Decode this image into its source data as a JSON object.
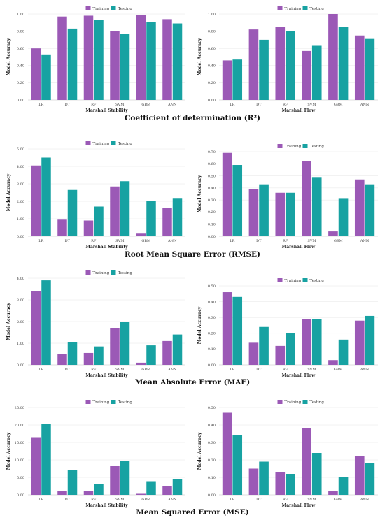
{
  "colors": {
    "training": "#9b59b6",
    "testing": "#17a2a2"
  },
  "legend": {
    "training": "Training",
    "testing": "Testing"
  },
  "captions": [
    "Coefficient of determination (R²)",
    "Root Mean Square Error (RMSE)",
    "Mean Absolute Error (MAE)",
    "Mean Squared Error (MSE)"
  ],
  "chart_data": [
    {
      "type": "bar",
      "categories": [
        "LR",
        "DT",
        "RF",
        "SVM",
        "GBM",
        "ANN"
      ],
      "series": [
        {
          "name": "Training",
          "values": [
            0.6,
            0.97,
            0.98,
            0.8,
            0.99,
            0.94
          ]
        },
        {
          "name": "Testing",
          "values": [
            0.53,
            0.83,
            0.93,
            0.77,
            0.91,
            0.89
          ]
        }
      ],
      "xlabel": "Marshall Stability",
      "ylabel": "Model Accuracy",
      "ylim": [
        0,
        1.0
      ],
      "ticks": [
        "0.00",
        "0.20",
        "0.40",
        "0.60",
        "0.80",
        "1.00"
      ],
      "grid": true,
      "legend_position": "top-center"
    },
    {
      "type": "bar",
      "categories": [
        "LR",
        "DT",
        "RF",
        "SVM",
        "GBM",
        "ANN"
      ],
      "series": [
        {
          "name": "Training",
          "values": [
            0.46,
            0.82,
            0.85,
            0.57,
            1.0,
            0.75
          ]
        },
        {
          "name": "Testing",
          "values": [
            0.47,
            0.7,
            0.8,
            0.63,
            0.85,
            0.71
          ]
        }
      ],
      "xlabel": "Marshall Flow",
      "ylabel": "Model Accuracy",
      "ylim": [
        0,
        1.0
      ],
      "ticks": [
        "0.00",
        "0.20",
        "0.40",
        "0.60",
        "0.80",
        "1.00"
      ],
      "grid": true,
      "legend_position": "top-center"
    },
    {
      "type": "bar",
      "categories": [
        "LR",
        "DT",
        "RF",
        "SVM",
        "GBM",
        "ANN"
      ],
      "series": [
        {
          "name": "Training",
          "values": [
            4.05,
            0.95,
            0.9,
            2.85,
            0.15,
            1.6
          ]
        },
        {
          "name": "Testing",
          "values": [
            4.5,
            2.65,
            1.7,
            3.15,
            2.0,
            2.15
          ]
        }
      ],
      "xlabel": "Marshall Stability",
      "ylabel": "Model Accuracy",
      "ylim": [
        0,
        5.0
      ],
      "ticks": [
        "0.00",
        "1.00",
        "2.00",
        "3.00",
        "4.00",
        "5.00"
      ],
      "grid": true,
      "legend_position": "top-center"
    },
    {
      "type": "bar",
      "categories": [
        "LR",
        "DT",
        "RF",
        "SVM",
        "GBM",
        "ANN"
      ],
      "series": [
        {
          "name": "Training",
          "values": [
            0.69,
            0.39,
            0.36,
            0.62,
            0.04,
            0.47
          ]
        },
        {
          "name": "Testing",
          "values": [
            0.59,
            0.43,
            0.36,
            0.49,
            0.31,
            0.43
          ]
        }
      ],
      "xlabel": "Marshall Flow",
      "ylabel": "Model Accuracy",
      "ylim": [
        0,
        0.7
      ],
      "ticks": [
        "0.00",
        "0.10",
        "0.20",
        "0.30",
        "0.40",
        "0.50",
        "0.60",
        "0.70"
      ],
      "grid": true,
      "legend_position": "top-center"
    },
    {
      "type": "bar",
      "categories": [
        "LR",
        "DT",
        "RF",
        "SVM",
        "GBM",
        "ANN"
      ],
      "series": [
        {
          "name": "Training",
          "values": [
            3.4,
            0.5,
            0.55,
            1.7,
            0.1,
            1.1
          ]
        },
        {
          "name": "Testing",
          "values": [
            3.9,
            1.05,
            0.85,
            2.0,
            0.9,
            1.4
          ]
        }
      ],
      "xlabel": "Marshall Stability",
      "ylabel": "Model Accuracy",
      "ylim": [
        0,
        4.0
      ],
      "ticks": [
        "0.00",
        "1.00",
        "2.00",
        "3.00",
        "4.00"
      ],
      "grid": true,
      "legend_position": "top-center"
    },
    {
      "type": "bar",
      "categories": [
        "LR",
        "DT",
        "RF",
        "SVM",
        "GBM",
        "ANN"
      ],
      "series": [
        {
          "name": "Training",
          "values": [
            0.46,
            0.14,
            0.12,
            0.29,
            0.03,
            0.28
          ]
        },
        {
          "name": "Testing",
          "values": [
            0.43,
            0.24,
            0.2,
            0.29,
            0.16,
            0.31
          ]
        }
      ],
      "xlabel": "Marshall Flow",
      "ylabel": "Model Accuracy",
      "ylim": [
        0,
        0.5
      ],
      "ticks": [
        "0.00",
        "0.10",
        "0.20",
        "0.30",
        "0.40",
        "0.50"
      ],
      "grid": true,
      "legend_position": "top-center"
    },
    {
      "type": "bar",
      "categories": [
        "LR",
        "DT",
        "RF",
        "SVM",
        "GBM",
        "ANN"
      ],
      "series": [
        {
          "name": "Training",
          "values": [
            16.5,
            1.0,
            1.0,
            8.2,
            0.3,
            2.5
          ]
        },
        {
          "name": "Testing",
          "values": [
            20.2,
            7.0,
            3.0,
            9.8,
            3.9,
            4.5
          ]
        }
      ],
      "xlabel": "Marshall Stability",
      "ylabel": "Model Accuracy",
      "ylim": [
        0,
        25.0
      ],
      "ticks": [
        "0.00",
        "5.00",
        "10.00",
        "15.00",
        "20.00",
        "25.00"
      ],
      "grid": true,
      "legend_position": "top-center"
    },
    {
      "type": "bar",
      "categories": [
        "LR",
        "DT",
        "RF",
        "SVM",
        "GBM",
        "ANN"
      ],
      "series": [
        {
          "name": "Training",
          "values": [
            0.47,
            0.15,
            0.13,
            0.38,
            0.02,
            0.22
          ]
        },
        {
          "name": "Testing",
          "values": [
            0.34,
            0.19,
            0.12,
            0.24,
            0.1,
            0.18
          ]
        }
      ],
      "xlabel": "Marshall Flow",
      "ylabel": "Model Accuracy",
      "ylim": [
        0,
        0.5
      ],
      "ticks": [
        "0.00",
        "0.10",
        "0.20",
        "0.30",
        "0.40",
        "0.50"
      ],
      "grid": true,
      "legend_position": "top-center"
    }
  ]
}
